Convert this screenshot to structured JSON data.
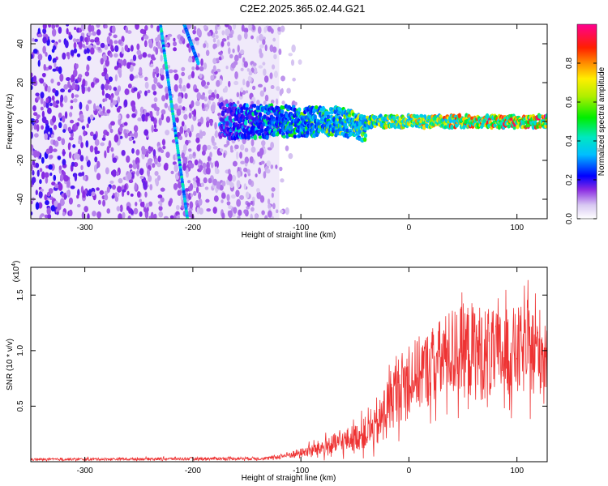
{
  "title": "C2E2.2025.365.02.44.G21",
  "chart_data": [
    {
      "type": "heatmap",
      "title": "C2E2.2025.365.02.44.G21",
      "xlabel": "Height of straight line (km)",
      "ylabel": "Frequency (Hz)",
      "xlim": [
        -350,
        128
      ],
      "ylim": [
        -50,
        50
      ],
      "xticks": [
        -300,
        -200,
        -100,
        0,
        100
      ],
      "yticks": [
        -40,
        -20,
        0,
        20,
        40
      ],
      "colorbar": {
        "label": "Normalized spectral amplitude",
        "range": [
          0.0,
          1.0
        ],
        "ticks": [
          0.0,
          0.2,
          0.4,
          0.6,
          0.8
        ]
      },
      "features": [
        {
          "name": "noise-region",
          "x_range": [
            -350,
            -120
          ],
          "y_range": [
            -50,
            50
          ],
          "amplitude": 0.12
        },
        {
          "name": "reflected-track-1",
          "x_start": -230,
          "x_end": -205,
          "y_start": 50,
          "y_end": -50,
          "amplitude": 0.35
        },
        {
          "name": "reflected-track-2",
          "x_start": -208,
          "x_end": -195,
          "y_start": 50,
          "y_end": 30,
          "amplitude": 0.3
        },
        {
          "name": "signal-band",
          "x_range": [
            -175,
            128
          ],
          "center_hz": 0,
          "amplitude_start": 0.3,
          "amplitude_end": 0.9
        }
      ]
    },
    {
      "type": "line",
      "xlabel": "Height of straight line (km)",
      "ylabel": "SNR (10 * v/v)",
      "y_multiplier": "(x10",
      "y_multiplier_exp": "4",
      "xlim": [
        -350,
        128
      ],
      "ylim": [
        0,
        1.75
      ],
      "xticks": [
        -300,
        -200,
        -100,
        0,
        100
      ],
      "yticks": [
        0.5,
        1.0,
        1.5
      ],
      "ytick_labels": [
        "0.5",
        "1.0",
        "1.5"
      ],
      "series": [
        {
          "name": "SNR",
          "color": "#ee3333",
          "envelope": [
            {
              "x": -350,
              "mean": 0.02,
              "spread": 0.01
            },
            {
              "x": -130,
              "mean": 0.03,
              "spread": 0.015
            },
            {
              "x": -100,
              "mean": 0.08,
              "spread": 0.04
            },
            {
              "x": -70,
              "mean": 0.15,
              "spread": 0.1
            },
            {
              "x": -50,
              "mean": 0.22,
              "spread": 0.12
            },
            {
              "x": -30,
              "mean": 0.3,
              "spread": 0.18
            },
            {
              "x": -15,
              "mean": 0.6,
              "spread": 0.3
            },
            {
              "x": 0,
              "mean": 0.75,
              "spread": 0.32
            },
            {
              "x": 20,
              "mean": 0.85,
              "spread": 0.35
            },
            {
              "x": 40,
              "mean": 1.0,
              "spread": 0.4
            },
            {
              "x": 60,
              "mean": 1.0,
              "spread": 0.45
            },
            {
              "x": 80,
              "mean": 0.95,
              "spread": 0.4
            },
            {
              "x": 100,
              "mean": 1.0,
              "spread": 0.4
            },
            {
              "x": 128,
              "mean": 1.0,
              "spread": 0.4
            }
          ]
        }
      ]
    }
  ]
}
